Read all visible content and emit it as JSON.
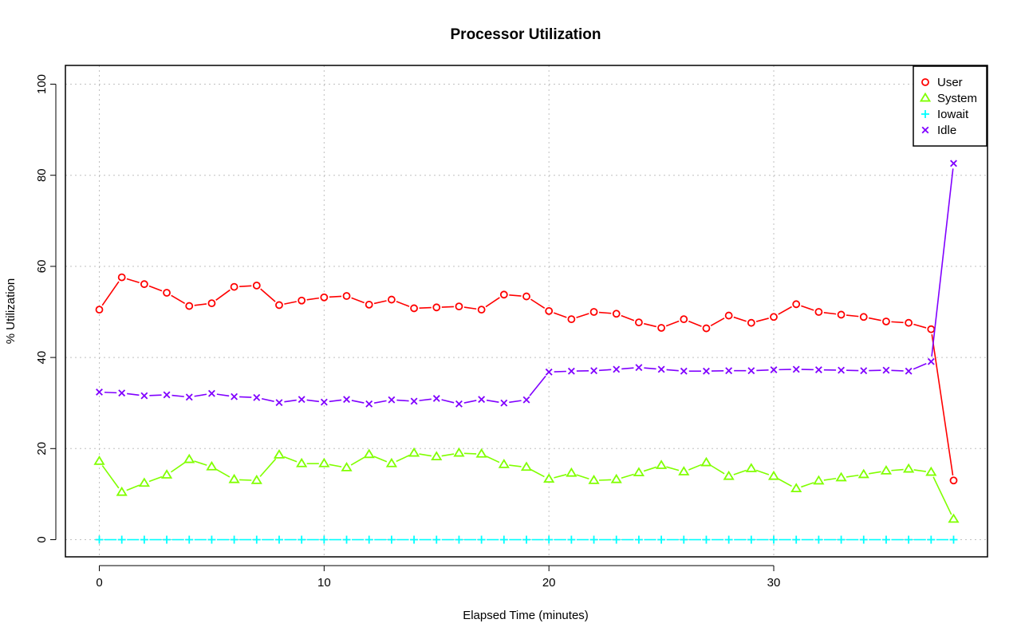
{
  "chart_data": {
    "type": "line",
    "title": "Processor Utilization",
    "xlabel": "Elapsed Time (minutes)",
    "ylabel": "% Utilization",
    "xlim": [
      0,
      38
    ],
    "ylim": [
      0,
      100
    ],
    "xticks": [
      0,
      10,
      20,
      30
    ],
    "yticks": [
      0,
      20,
      40,
      60,
      80,
      100
    ],
    "grid": true,
    "legend_position": "top-right",
    "x": [
      0,
      1,
      2,
      3,
      4,
      5,
      6,
      7,
      8,
      9,
      10,
      11,
      12,
      13,
      14,
      15,
      16,
      17,
      18,
      19,
      20,
      21,
      22,
      23,
      24,
      25,
      26,
      27,
      28,
      29,
      30,
      31,
      32,
      33,
      34,
      35,
      36,
      37,
      38
    ],
    "series": [
      {
        "name": "User",
        "color": "#ff0000",
        "marker": "circle",
        "values": [
          50.5,
          57.6,
          56.1,
          54.2,
          51.3,
          51.9,
          55.5,
          55.8,
          51.5,
          52.5,
          53.2,
          53.5,
          51.6,
          52.7,
          50.8,
          51.0,
          51.2,
          50.5,
          53.8,
          53.4,
          50.2,
          48.4,
          50.0,
          49.6,
          47.7,
          46.5,
          48.4,
          46.4,
          49.2,
          47.6,
          48.9,
          51.7,
          50.0,
          49.4,
          48.9,
          47.9,
          47.6,
          46.2,
          13.0
        ]
      },
      {
        "name": "System",
        "color": "#80ff00",
        "marker": "triangle",
        "values": [
          17.2,
          10.4,
          12.4,
          14.2,
          17.6,
          16.0,
          13.2,
          13.0,
          18.6,
          16.7,
          16.7,
          15.8,
          18.7,
          16.7,
          19.0,
          18.2,
          19.0,
          18.8,
          16.5,
          15.9,
          13.3,
          14.6,
          13.0,
          13.2,
          14.7,
          16.3,
          14.9,
          16.9,
          13.9,
          15.6,
          13.9,
          11.2,
          12.9,
          13.6,
          14.3,
          15.1,
          15.5,
          14.8,
          4.5
        ]
      },
      {
        "name": "Iowait",
        "color": "#00ffff",
        "marker": "plus",
        "values": [
          0,
          0,
          0,
          0,
          0,
          0,
          0,
          0,
          0,
          0,
          0,
          0,
          0,
          0,
          0,
          0,
          0,
          0,
          0,
          0,
          0,
          0,
          0,
          0,
          0,
          0,
          0,
          0,
          0,
          0,
          0,
          0,
          0,
          0,
          0,
          0,
          0,
          0,
          0
        ]
      },
      {
        "name": "Idle",
        "color": "#8000ff",
        "marker": "cross",
        "values": [
          32.4,
          32.2,
          31.6,
          31.8,
          31.3,
          32.1,
          31.4,
          31.2,
          30.1,
          30.8,
          30.2,
          30.8,
          29.8,
          30.7,
          30.4,
          31.0,
          29.8,
          30.8,
          30.0,
          30.7,
          36.8,
          37.0,
          37.1,
          37.4,
          37.8,
          37.4,
          37.0,
          37.0,
          37.1,
          37.1,
          37.3,
          37.4,
          37.3,
          37.2,
          37.1,
          37.2,
          37.0,
          39.1,
          82.6
        ]
      }
    ]
  }
}
